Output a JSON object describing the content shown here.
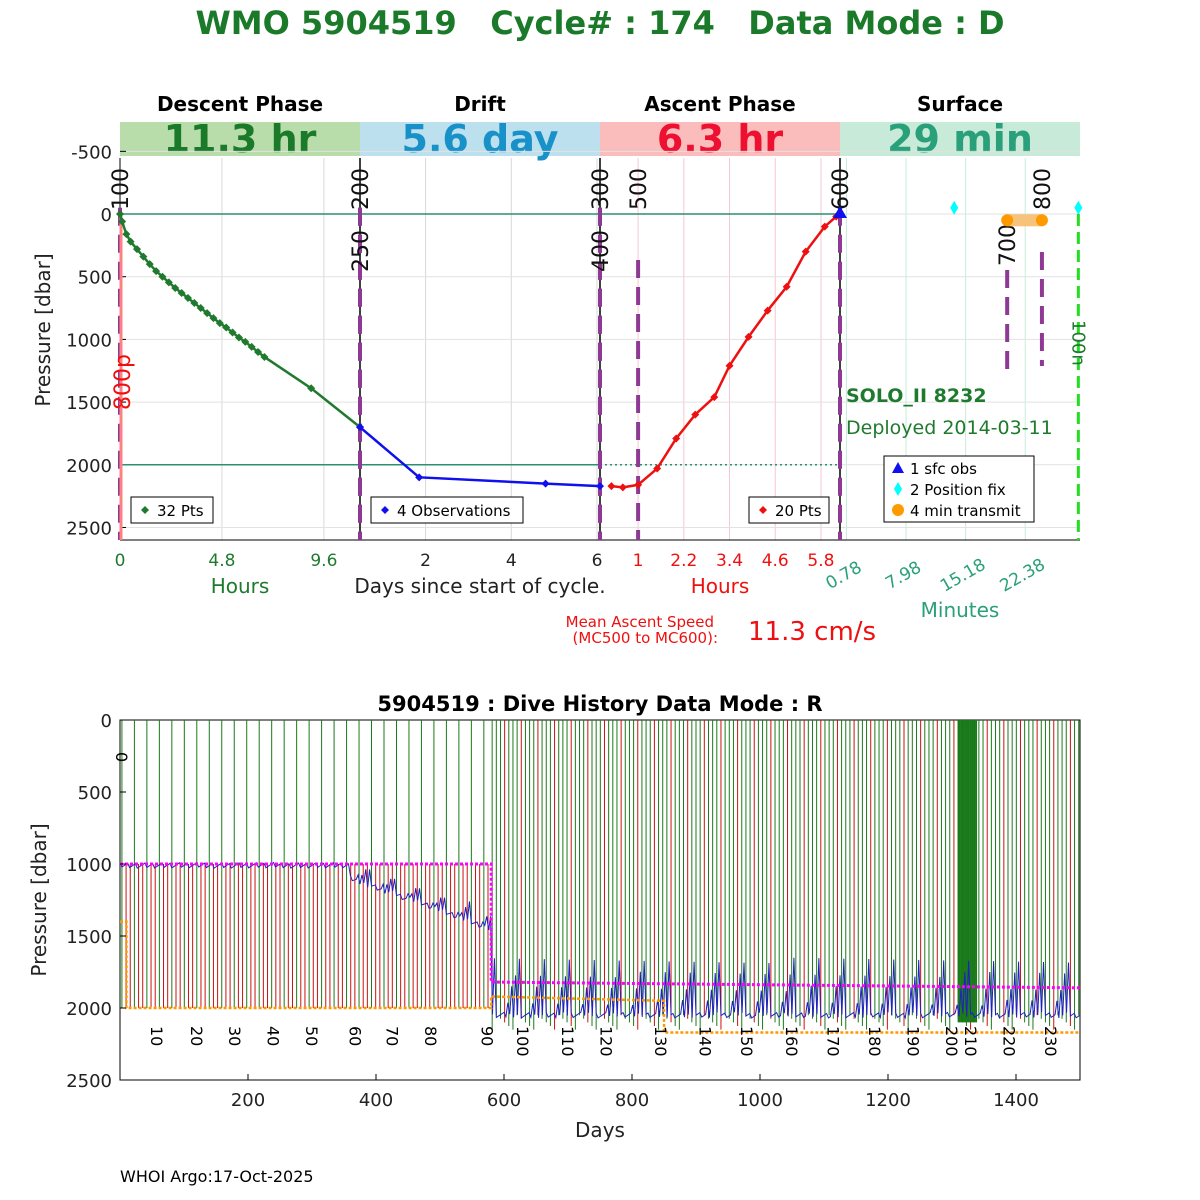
{
  "header": {
    "title": "WMO 5904519   Cycle# : 174   Data Mode : D",
    "title_color": "#1a7a2a"
  },
  "phases": [
    {
      "label": "Descent Phase",
      "duration": "11.3 hr",
      "bg": "#b8dcaa",
      "fg": "#1a7a2a"
    },
    {
      "label": "Drift",
      "duration": "5.6 day",
      "bg": "#bce0ee",
      "fg": "#1890c8"
    },
    {
      "label": "Ascent Phase",
      "duration": "6.3 hr",
      "bg": "#fbbcbc",
      "fg": "#ee1030"
    },
    {
      "label": "Surface",
      "duration": "29 min",
      "bg": "#c8ead8",
      "fg": "#2aa07a"
    }
  ],
  "top_axis": {
    "ylabel": "Pressure [dbar]",
    "yticks": [
      "-500",
      "0",
      "500",
      "1000",
      "1500",
      "2000",
      "2500"
    ],
    "ytick_values": [
      -500,
      0,
      500,
      1000,
      1500,
      2000,
      2500
    ],
    "ylim": [
      2600,
      -750
    ]
  },
  "descent": {
    "xlabel": "Hours",
    "xticks": [
      "0",
      "4.8",
      "9.6"
    ],
    "xtick_values": [
      0,
      4.8,
      9.6
    ],
    "xlim": [
      0,
      11.3
    ],
    "legend": "32 Pts",
    "color": "#1f7a2e",
    "sensor_label": "800p",
    "series": {
      "x": [
        0,
        0.1,
        0.3,
        0.5,
        0.8,
        1.1,
        1.4,
        1.7,
        2.0,
        2.3,
        2.6,
        2.9,
        3.2,
        3.5,
        3.8,
        4.1,
        4.4,
        4.7,
        5.0,
        5.3,
        5.6,
        5.9,
        6.2,
        6.5,
        6.8,
        9.0,
        11.3
      ],
      "y": [
        0,
        60,
        160,
        220,
        280,
        340,
        400,
        455,
        500,
        545,
        590,
        630,
        670,
        710,
        750,
        790,
        830,
        870,
        905,
        945,
        985,
        1020,
        1060,
        1100,
        1140,
        1390,
        1700
      ]
    }
  },
  "drift": {
    "xlabel": "Days since start of cycle.",
    "xticks": [
      "2",
      "4",
      "6"
    ],
    "xtick_values": [
      2,
      4,
      6
    ],
    "xlim": [
      0.47,
      6.07
    ],
    "legend": "4 Observations",
    "color": "#1010ee",
    "series": {
      "x": [
        0.47,
        1.85,
        4.8,
        6.07
      ],
      "y": [
        1700,
        2100,
        2150,
        2170
      ]
    }
  },
  "ascent": {
    "xlabel": "Hours",
    "xticks": [
      "1",
      "2.2",
      "3.4",
      "4.6",
      "5.8"
    ],
    "xtick_values": [
      1,
      2.2,
      3.4,
      4.6,
      5.8
    ],
    "xlim": [
      0,
      6.3
    ],
    "legend": "20 Pts",
    "color": "#ee1010",
    "series": {
      "x": [
        0.3,
        0.6,
        1.0,
        1.5,
        2.0,
        2.5,
        3.0,
        3.4,
        3.9,
        4.4,
        4.9,
        5.4,
        5.9,
        6.2
      ],
      "y": [
        2170,
        2180,
        2160,
        2030,
        1790,
        1600,
        1460,
        1210,
        980,
        770,
        580,
        300,
        100,
        20
      ]
    },
    "mean_speed_label": "Mean Ascent Speed",
    "mean_speed_sub": "(MC500 to MC600):",
    "mean_speed_value": "11.3 cm/s"
  },
  "surface": {
    "xlabel": "Minutes",
    "xticks": [
      "0.78",
      "7.98",
      "15.18",
      "22.38"
    ],
    "xtick_values": [
      0.78,
      7.98,
      15.18,
      22.38
    ],
    "xlim": [
      0,
      29
    ],
    "float_name": "SOLO_II 8232",
    "deployed": "Deployed 2014-03-11",
    "gps_label": "100n",
    "legend": [
      "1 sfc obs",
      "2 Position fix",
      "4 min transmit"
    ],
    "legend_colors": [
      "#1010ee",
      "#00ffff",
      "#ff9900"
    ],
    "position_fix_x": [
      13.8,
      28.8
    ],
    "transmit_x": [
      20.2,
      24.4
    ]
  },
  "mission_codes": [
    {
      "label": "100",
      "segment": "descent",
      "x": 0,
      "top": true
    },
    {
      "label": "200",
      "segment": "drift",
      "x": 0.47,
      "top": true
    },
    {
      "label": "250",
      "segment": "drift",
      "x": 0.47,
      "top": false
    },
    {
      "label": "300",
      "segment": "drift",
      "x": 6.07,
      "top": true
    },
    {
      "label": "400",
      "segment": "drift",
      "x": 6.07,
      "top": false
    },
    {
      "label": "500",
      "segment": "ascent",
      "x": 1.0,
      "top": true
    },
    {
      "label": "600",
      "segment": "ascent",
      "x": 6.3,
      "top": true
    },
    {
      "label": "700",
      "segment": "surface",
      "x": 20.2,
      "top": false
    },
    {
      "label": "800",
      "segment": "surface",
      "x": 24.4,
      "top": true
    }
  ],
  "chart_data": [
    {
      "type": "line",
      "title": "WMO 5904519   Cycle# : 174   Data Mode : D",
      "ylabel": "Pressure [dbar]",
      "panels": [
        "Descent Phase",
        "Drift",
        "Ascent Phase",
        "Surface"
      ],
      "series": [
        {
          "name": "32 Pts",
          "panel": "Descent Phase"
        },
        {
          "name": "4 Observations",
          "panel": "Drift"
        },
        {
          "name": "20 Pts",
          "panel": "Ascent Phase"
        }
      ]
    },
    {
      "type": "line",
      "title": "5904519 : Dive History      Data Mode : R",
      "xlabel": "Days",
      "ylabel": "Pressure [dbar]",
      "xticks": [
        "200",
        "400",
        "600",
        "800",
        "1000",
        "1200",
        "1400"
      ],
      "xtick_values": [
        200,
        400,
        600,
        800,
        1000,
        1200,
        1400
      ],
      "yticks": [
        "0",
        "500",
        "1000",
        "1500",
        "2000",
        "2500"
      ],
      "ytick_values": [
        0,
        500,
        1000,
        1500,
        2000,
        2500
      ],
      "xlim": [
        0,
        1500
      ],
      "ylim": [
        2500,
        0
      ],
      "cycle_labels": [
        "0",
        "10",
        "20",
        "30",
        "40",
        "50",
        "60",
        "70",
        "80",
        "90",
        "100",
        "110",
        "120",
        "130",
        "140",
        "150",
        "160",
        "170",
        "180",
        "190",
        "200",
        "210",
        "220",
        "230"
      ],
      "cycle_label_days": [
        3,
        58,
        120,
        180,
        240,
        300,
        368,
        426,
        486,
        574,
        630,
        700,
        760,
        845,
        915,
        980,
        1050,
        1115,
        1180,
        1240,
        1300,
        1330,
        1390,
        1455
      ],
      "park_pressure": {
        "x": [
          0,
          580,
          580,
          1500
        ],
        "y": [
          1000,
          1000,
          1820,
          1860
        ]
      },
      "profile_pressure": {
        "x": [
          0,
          10,
          10,
          580,
          580,
          850,
          850,
          1500
        ],
        "y": [
          1400,
          1400,
          2000,
          2000,
          1920,
          1950,
          2170,
          2170
        ]
      },
      "colors": {
        "park": "#ff00ff",
        "profile": "#ff9900",
        "ascent": "#cc1010",
        "descent": "#1a7a1a",
        "drift": "#2020c0"
      }
    }
  ],
  "footer": {
    "credit": "WHOI Argo:17-Oct-2025"
  }
}
